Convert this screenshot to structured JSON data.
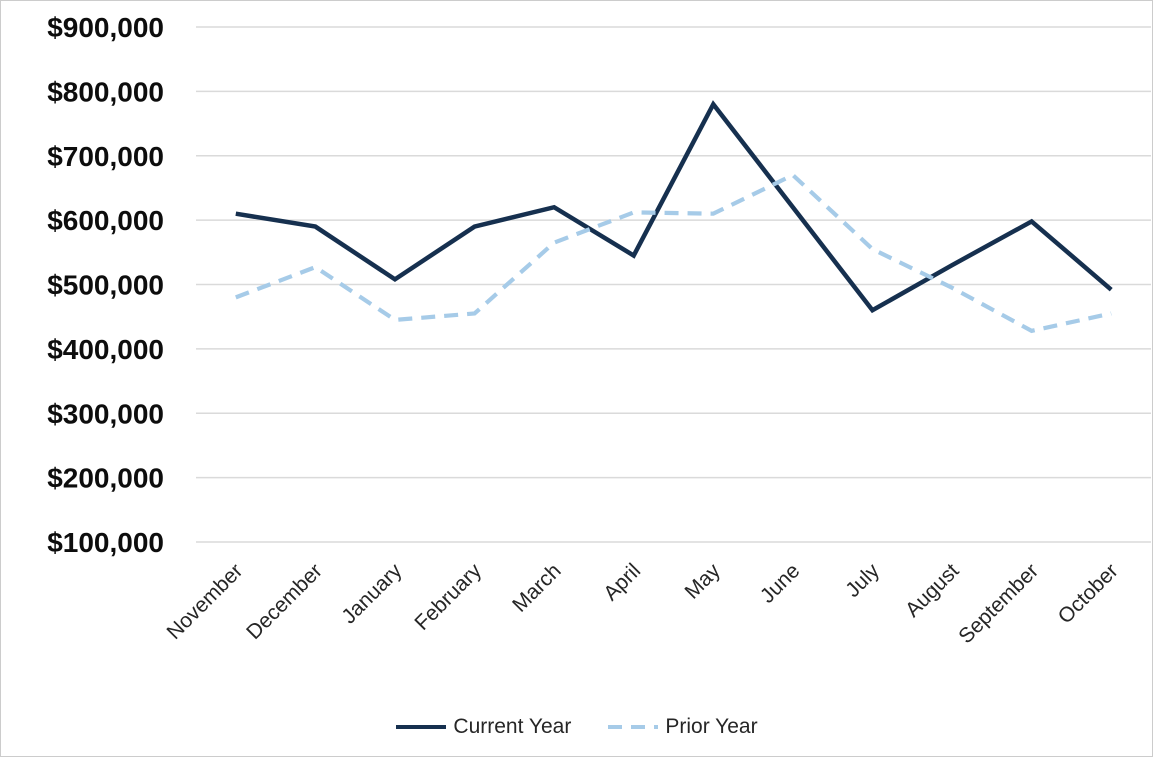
{
  "chart_data": {
    "type": "line",
    "title": "",
    "xlabel": "",
    "ylabel": "",
    "categories": [
      "November",
      "December",
      "January",
      "February",
      "March",
      "April",
      "May",
      "June",
      "July",
      "August",
      "September",
      "October"
    ],
    "series": [
      {
        "name": "Current Year",
        "color": "#16304f",
        "style": "solid",
        "values": [
          610000,
          590000,
          508000,
          590000,
          620000,
          545000,
          780000,
          620000,
          460000,
          530000,
          598000,
          492000
        ]
      },
      {
        "name": "Prior Year",
        "color": "#a6cbe8",
        "style": "dashed",
        "values": [
          480000,
          527000,
          445000,
          455000,
          565000,
          612000,
          610000,
          670000,
          555000,
          495000,
          428000,
          455000
        ]
      }
    ],
    "y_axis": {
      "min": 100000,
      "max": 900000,
      "ticks": [
        900000,
        800000,
        700000,
        600000,
        500000,
        400000,
        300000,
        200000,
        100000
      ],
      "tick_labels": [
        "$900,000",
        "$800,000",
        "$700,000",
        "$600,000",
        "$500,000",
        "$400,000",
        "$300,000",
        "$200,000",
        "$100,000"
      ],
      "gridlines": true
    },
    "legend_position": "bottom"
  },
  "colors": {
    "current_year_line": "#16304f",
    "prior_year_line": "#a6cbe8",
    "gridline": "#dadada",
    "axis_text": "#0d0d0d"
  }
}
